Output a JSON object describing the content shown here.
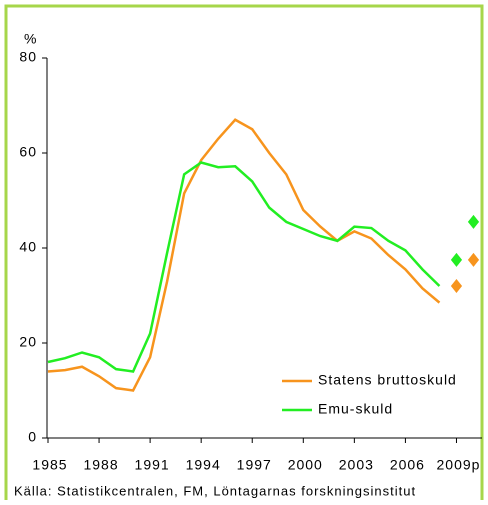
{
  "chart_data": {
    "type": "line",
    "y_label": "%",
    "x": [
      1985,
      1986,
      1987,
      1988,
      1989,
      1990,
      1991,
      1992,
      1993,
      1994,
      1995,
      1996,
      1997,
      1998,
      1999,
      2000,
      2001,
      2002,
      2003,
      2004,
      2005,
      2006,
      2007,
      2008
    ],
    "forecast_x": [
      2009,
      2010
    ],
    "series": [
      {
        "name": "Statens bruttoskuld",
        "color": "#f7941d",
        "values": [
          14,
          14.3,
          15,
          13,
          10.5,
          10,
          17,
          33,
          51.5,
          58.5,
          63,
          67,
          65,
          60,
          55.5,
          48,
          44.5,
          41.5,
          43.5,
          42,
          38.5,
          35.5,
          31.5,
          28.5
        ],
        "forecast_values": [
          32,
          37.5
        ]
      },
      {
        "name": "Emu-skuld",
        "color": "#22ee22",
        "values": [
          16,
          16.8,
          18,
          17,
          14.5,
          14,
          22,
          39,
          55.5,
          58,
          57,
          57.2,
          54,
          48.5,
          45.5,
          44,
          42.5,
          41.5,
          44.5,
          44.2,
          41.5,
          39.5,
          35.5,
          32
        ],
        "forecast_values": [
          37.5,
          45.5
        ]
      }
    ],
    "xlim": [
      1985,
      2010.5
    ],
    "xticks": [
      1985,
      1988,
      1991,
      1994,
      1997,
      2000,
      2003,
      2006,
      {
        "value": 2009,
        "label": "2009p"
      }
    ],
    "ylim": [
      0,
      80
    ],
    "yticks": [
      0,
      20,
      40,
      60,
      80
    ],
    "grid": false,
    "legend": "lower right",
    "source": "Källa: Statistikcentralen, FM, Löntagarnas forskningsinstitut"
  }
}
